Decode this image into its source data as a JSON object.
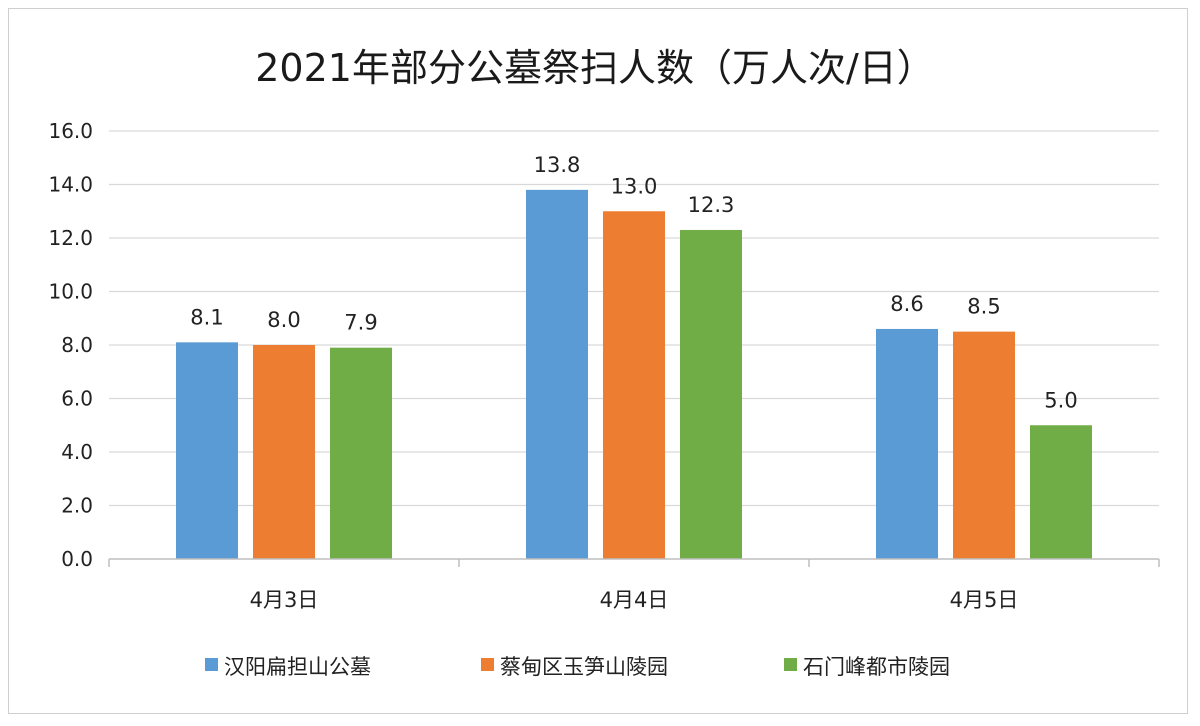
{
  "chart_data": {
    "type": "bar",
    "title": "2021年部分公墓祭扫人数（万人次/日）",
    "categories": [
      "4月3日",
      "4月4日",
      "4月5日"
    ],
    "series": [
      {
        "name": "汉阳扁担山公墓",
        "values": [
          8.1,
          13.8,
          8.6
        ],
        "color": "#5B9BD5"
      },
      {
        "name": "蔡甸区玉笋山陵园",
        "values": [
          8.0,
          13.0,
          8.5
        ],
        "color": "#ED7D31"
      },
      {
        "name": "石门峰都市陵园",
        "values": [
          7.9,
          12.3,
          5.0
        ],
        "color": "#70AD47"
      }
    ],
    "ylim": [
      0,
      16
    ],
    "yticks": [
      "0.0",
      "2.0",
      "4.0",
      "6.0",
      "8.0",
      "10.0",
      "12.0",
      "14.0",
      "16.0"
    ],
    "value_labels": [
      [
        "8.1",
        "13.8",
        "8.6"
      ],
      [
        "8.0",
        "13.0",
        "8.5"
      ],
      [
        "7.9",
        "12.3",
        "5.0"
      ]
    ],
    "grid": true,
    "legend": "bottom"
  }
}
